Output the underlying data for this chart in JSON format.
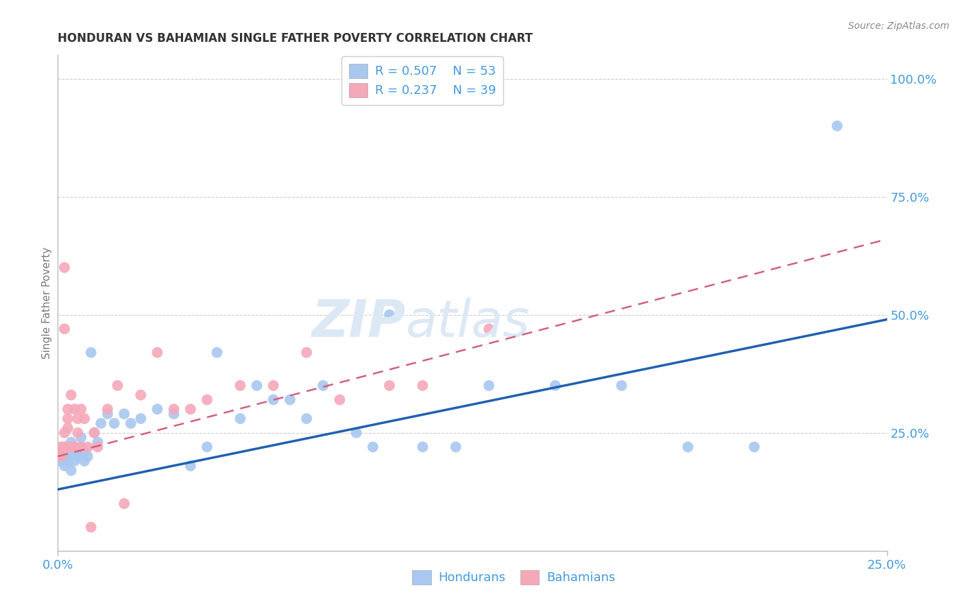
{
  "title": "HONDURAN VS BAHAMIAN SINGLE FATHER POVERTY CORRELATION CHART",
  "source": "Source: ZipAtlas.com",
  "ylabel": "Single Father Poverty",
  "xlim": [
    0.0,
    0.25
  ],
  "ylim": [
    0.0,
    1.05
  ],
  "ytick_values": [
    0.0,
    0.25,
    0.5,
    0.75,
    1.0
  ],
  "ytick_labels": [
    "",
    "25.0%",
    "50.0%",
    "75.0%",
    "100.0%"
  ],
  "xtick_values": [
    0.0,
    0.25
  ],
  "xtick_labels": [
    "0.0%",
    "25.0%"
  ],
  "legend_r1": "R = 0.507",
  "legend_n1": "N = 53",
  "legend_r2": "R = 0.237",
  "legend_n2": "N = 39",
  "honduran_color": "#a8c8f0",
  "bahamian_color": "#f5a8b8",
  "honduran_line_color": "#2060b0",
  "bahamian_line_color": "#d06080",
  "grid_color": "#cccccc",
  "axis_color": "#bbbbbb",
  "tick_label_color": "#4499dd",
  "title_color": "#333333",
  "watermark_color": "#dde8f5",
  "background_color": "#ffffff",
  "hondurans_x": [
    0.001,
    0.001,
    0.002,
    0.002,
    0.002,
    0.003,
    0.003,
    0.003,
    0.003,
    0.004,
    0.004,
    0.004,
    0.005,
    0.005,
    0.005,
    0.006,
    0.006,
    0.007,
    0.007,
    0.008,
    0.008,
    0.009,
    0.01,
    0.011,
    0.012,
    0.013,
    0.015,
    0.017,
    0.02,
    0.022,
    0.025,
    0.03,
    0.035,
    0.04,
    0.045,
    0.048,
    0.055,
    0.06,
    0.065,
    0.07,
    0.075,
    0.08,
    0.09,
    0.095,
    0.1,
    0.11,
    0.12,
    0.13,
    0.15,
    0.17,
    0.19,
    0.21,
    0.235
  ],
  "hondurans_y": [
    0.19,
    0.21,
    0.22,
    0.2,
    0.18,
    0.21,
    0.19,
    0.22,
    0.2,
    0.21,
    0.17,
    0.23,
    0.2,
    0.22,
    0.19,
    0.21,
    0.2,
    0.22,
    0.24,
    0.21,
    0.19,
    0.2,
    0.42,
    0.25,
    0.23,
    0.27,
    0.29,
    0.27,
    0.29,
    0.27,
    0.28,
    0.3,
    0.29,
    0.18,
    0.22,
    0.42,
    0.28,
    0.35,
    0.32,
    0.32,
    0.28,
    0.35,
    0.25,
    0.22,
    0.5,
    0.22,
    0.22,
    0.35,
    0.35,
    0.35,
    0.22,
    0.22,
    0.9
  ],
  "bahamians_x": [
    0.001,
    0.001,
    0.001,
    0.002,
    0.002,
    0.002,
    0.002,
    0.003,
    0.003,
    0.003,
    0.003,
    0.004,
    0.004,
    0.005,
    0.005,
    0.006,
    0.006,
    0.007,
    0.007,
    0.008,
    0.009,
    0.01,
    0.011,
    0.012,
    0.015,
    0.018,
    0.02,
    0.025,
    0.03,
    0.035,
    0.04,
    0.045,
    0.055,
    0.065,
    0.075,
    0.085,
    0.1,
    0.11,
    0.13
  ],
  "bahamians_y": [
    0.22,
    0.21,
    0.2,
    0.6,
    0.47,
    0.25,
    0.22,
    0.3,
    0.28,
    0.26,
    0.22,
    0.33,
    0.22,
    0.3,
    0.22,
    0.28,
    0.25,
    0.3,
    0.22,
    0.28,
    0.22,
    0.05,
    0.25,
    0.22,
    0.3,
    0.35,
    0.1,
    0.33,
    0.42,
    0.3,
    0.3,
    0.32,
    0.35,
    0.35,
    0.42,
    0.32,
    0.35,
    0.35,
    0.47
  ],
  "honduran_line_x": [
    0.0,
    0.25
  ],
  "honduran_line_y": [
    0.13,
    0.49
  ],
  "bahamian_line_x": [
    0.0,
    0.25
  ],
  "bahamian_line_y": [
    0.2,
    0.66
  ]
}
